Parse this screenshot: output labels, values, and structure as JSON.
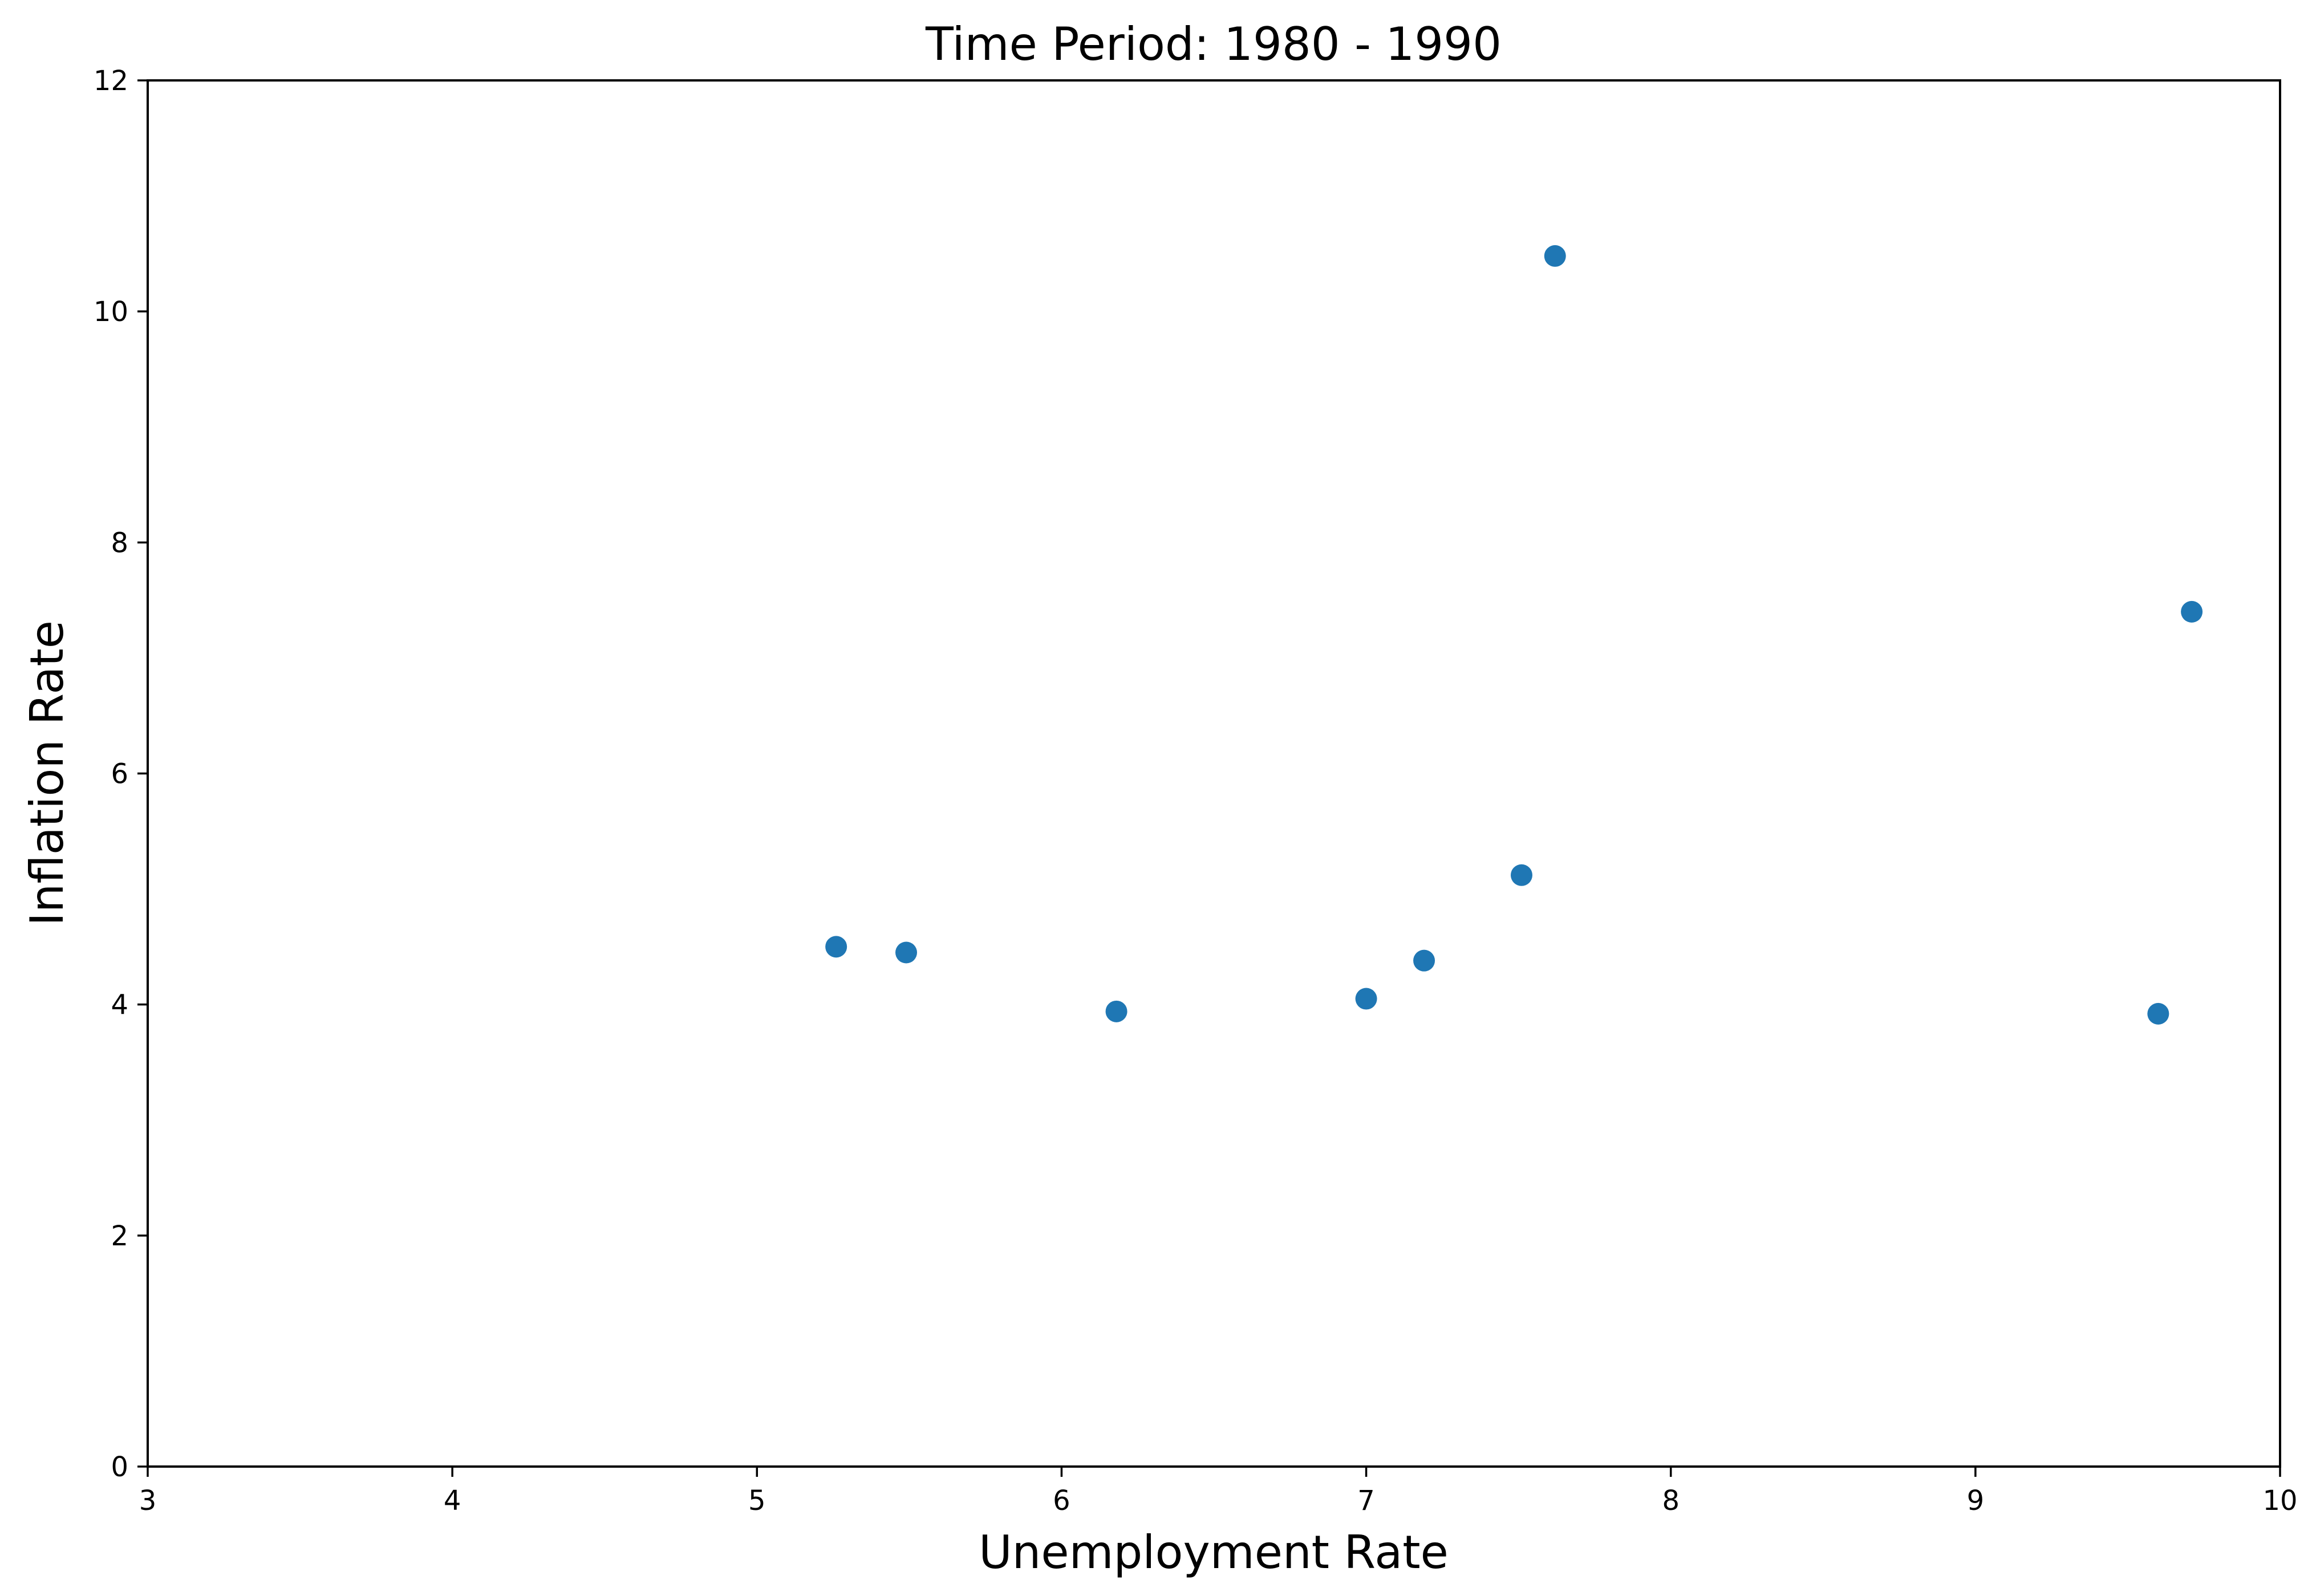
{
  "chart_data": {
    "type": "scatter",
    "title": "Time Period: 1980 - 1990",
    "xlabel": "Unemployment Rate",
    "ylabel": "Inflation Rate",
    "xlim": [
      3,
      10
    ],
    "ylim": [
      0,
      12
    ],
    "xticks": [
      3,
      4,
      5,
      6,
      7,
      8,
      9,
      10
    ],
    "yticks": [
      0,
      2,
      4,
      6,
      8,
      10,
      12
    ],
    "grid": false,
    "marker_color": "#1f77b4",
    "points": [
      {
        "x": 5.26,
        "y": 4.5
      },
      {
        "x": 5.49,
        "y": 4.45
      },
      {
        "x": 6.18,
        "y": 3.94
      },
      {
        "x": 7.0,
        "y": 4.05
      },
      {
        "x": 7.19,
        "y": 4.38
      },
      {
        "x": 7.51,
        "y": 5.12
      },
      {
        "x": 7.62,
        "y": 10.48
      },
      {
        "x": 9.6,
        "y": 3.92
      },
      {
        "x": 9.71,
        "y": 7.4
      }
    ]
  }
}
